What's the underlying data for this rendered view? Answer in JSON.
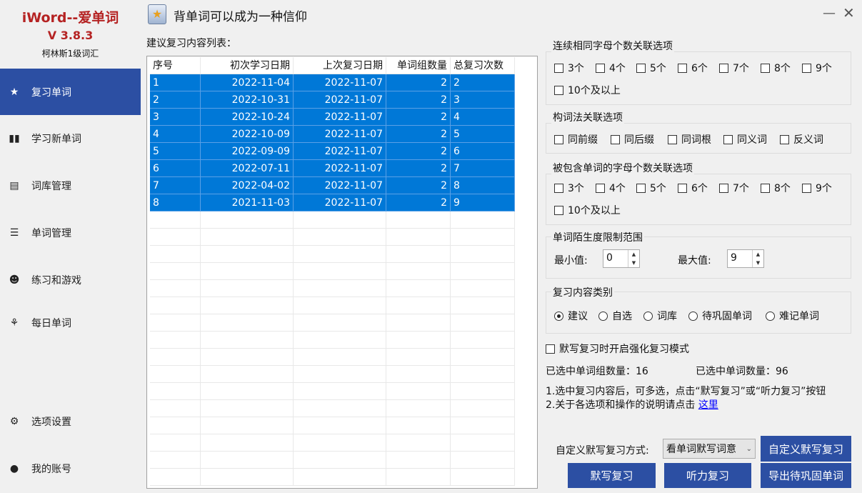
{
  "app": {
    "name": "iWord--爱单词",
    "version": "V 3.8.3",
    "wordbook": "柯林斯1级词汇",
    "title": "背单词可以成为一种信仰"
  },
  "nav": [
    {
      "label": "复习单词",
      "icon": "star-icon",
      "active": true
    },
    {
      "label": "学习新单词",
      "icon": "book-icon"
    },
    {
      "label": "词库管理",
      "icon": "notebook-icon"
    },
    {
      "label": "单词管理",
      "icon": "list-icon"
    },
    {
      "label": "练习和游戏",
      "icon": "smile-icon"
    },
    {
      "label": "每日单词",
      "icon": "sprout-icon"
    },
    {
      "label": "选项设置",
      "icon": "gear-icon"
    },
    {
      "label": "我的账号",
      "icon": "user-icon"
    }
  ],
  "table": {
    "label": "建议复习内容列表：",
    "headers": [
      "序号",
      "初次学习日期",
      "上次复习日期",
      "单词组数量",
      "总复习次数"
    ],
    "rows": [
      [
        "1",
        "2022-11-04",
        "2022-11-07",
        "2",
        "2"
      ],
      [
        "2",
        "2022-10-31",
        "2022-11-07",
        "2",
        "3"
      ],
      [
        "3",
        "2022-10-24",
        "2022-11-07",
        "2",
        "4"
      ],
      [
        "4",
        "2022-10-09",
        "2022-11-07",
        "2",
        "5"
      ],
      [
        "5",
        "2022-09-09",
        "2022-11-07",
        "2",
        "6"
      ],
      [
        "6",
        "2022-07-11",
        "2022-11-07",
        "2",
        "7"
      ],
      [
        "7",
        "2022-04-02",
        "2022-11-07",
        "2",
        "8"
      ],
      [
        "8",
        "2021-11-03",
        "2022-11-07",
        "2",
        "9"
      ]
    ]
  },
  "options": {
    "g1": {
      "title": "连续相同字母个数关联选项",
      "items": [
        "3个",
        "4个",
        "5个",
        "6个",
        "7个",
        "8个",
        "9个",
        "10个及以上"
      ]
    },
    "g2": {
      "title": "构词法关联选项",
      "items": [
        "同前缀",
        "同后缀",
        "同词根",
        "同义词",
        "反义词"
      ]
    },
    "g3": {
      "title": "被包含单词的字母个数关联选项",
      "items": [
        "3个",
        "4个",
        "5个",
        "6个",
        "7个",
        "8个",
        "9个",
        "10个及以上"
      ]
    },
    "g4": {
      "title": "单词陌生度限制范围",
      "min_label": "最小值:",
      "min": "0",
      "max_label": "最大值:",
      "max": "9"
    },
    "g5": {
      "title": "复习内容类别",
      "items": [
        "建议",
        "自选",
        "词库",
        "待巩固单词",
        "难记单词"
      ],
      "selected": 0
    }
  },
  "intensive": "默写复习时开启强化复习模式",
  "counts": {
    "groups": "已选中单词组数量：16",
    "words": "已选中单词数量：96"
  },
  "notes": {
    "line1": "1.选中复习内容后，可多选，点击“默写复习”或“听力复习”按钮",
    "line2": "2.关于各选项和操作的说明请点击",
    "link": "这里"
  },
  "custom": {
    "label": "自定义默写复习方式:",
    "value": "看单词默写词意"
  },
  "buttons": {
    "custom": "自定义默写复习",
    "dictation": "默写复习",
    "listening": "听力复习",
    "export": "导出待巩固单词"
  },
  "colors": {
    "accent": "#2c4fa3",
    "selection": "#0078d7",
    "brand": "#b52323"
  }
}
